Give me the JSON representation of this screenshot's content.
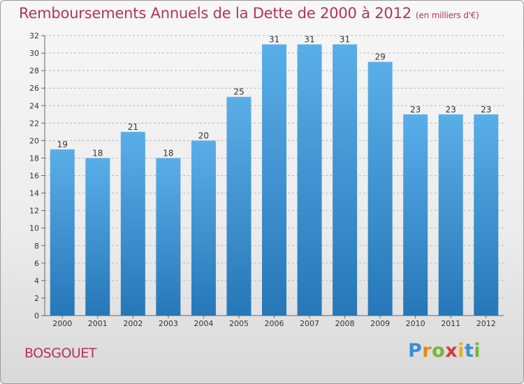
{
  "header": {
    "title": "Remboursements Annuels de la Dette de 2000 à 2012",
    "unit": "(en milliers d'€)"
  },
  "footer": {
    "commune": "BOSGOUET",
    "logo_letters": [
      {
        "char": "P",
        "color": "#3a8fd6"
      },
      {
        "char": "r",
        "color": "#e08a1c"
      },
      {
        "char": "o",
        "color": "#7bb23a"
      },
      {
        "char": "x",
        "color": "#d63a3a"
      },
      {
        "char": "i",
        "color": "#e0b41c"
      },
      {
        "char": "t",
        "color": "#3a8fd6"
      },
      {
        "char": "i",
        "color": "#7bb23a"
      }
    ]
  },
  "chart_data": {
    "type": "bar",
    "title": "Remboursements Annuels de la Dette de 2000 à 2012",
    "categories": [
      "2000",
      "2001",
      "2002",
      "2003",
      "2004",
      "2005",
      "2006",
      "2007",
      "2008",
      "2009",
      "2010",
      "2011",
      "2012"
    ],
    "values": [
      19,
      18,
      21,
      18,
      20,
      25,
      31,
      31,
      31,
      29,
      23,
      23,
      23
    ],
    "ylim": [
      0,
      32
    ],
    "yticks": [
      0,
      2,
      4,
      6,
      8,
      10,
      12,
      14,
      16,
      18,
      20,
      22,
      24,
      26,
      28,
      30,
      32
    ],
    "grid": true,
    "bar_color_top": "#5aaee8",
    "bar_color_bottom": "#2677b8"
  }
}
